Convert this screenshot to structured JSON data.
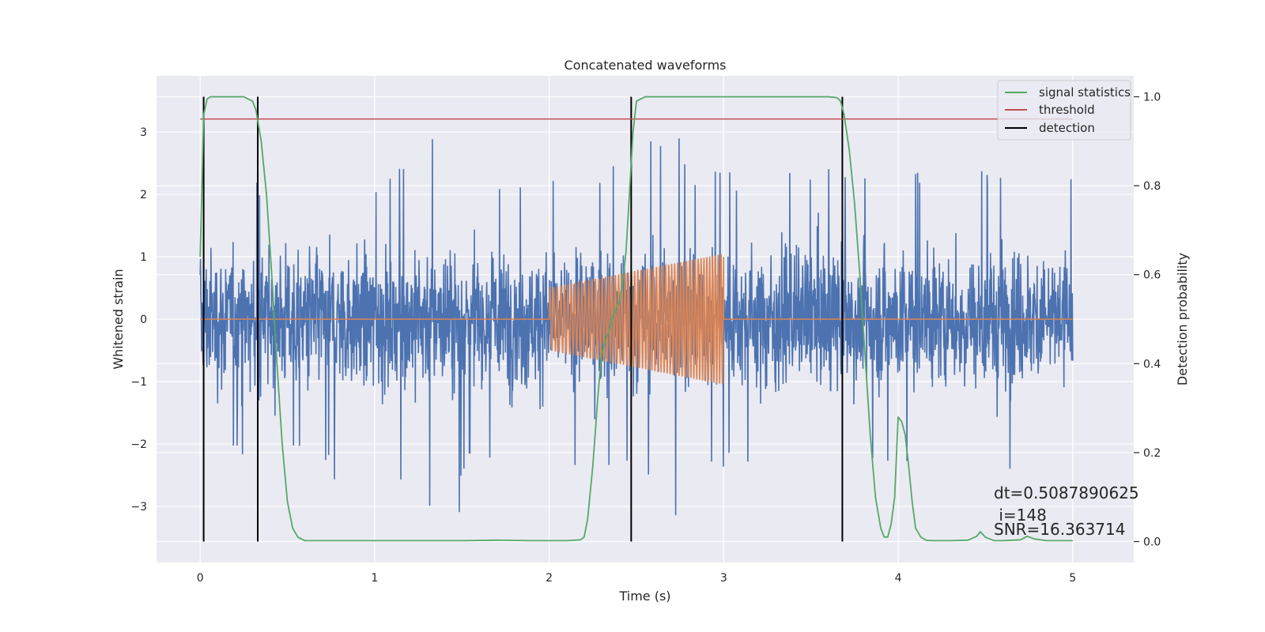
{
  "chart_data": {
    "type": "line",
    "title": "Concatenated waveforms",
    "xlabel": "Time (s)",
    "ylabel": "Whitened strain",
    "y2label": "Detection probability",
    "xlim": [
      -0.25,
      5.35
    ],
    "ylim": [
      -3.9,
      3.9
    ],
    "y2lim": [
      -0.047,
      1.047
    ],
    "xticks": [
      0,
      1,
      2,
      3,
      4,
      5
    ],
    "xtick_labels": [
      "0",
      "1",
      "2",
      "3",
      "4",
      "5"
    ],
    "yticks": [
      -3,
      -2,
      -1,
      0,
      1,
      2,
      3
    ],
    "ytick_labels": [
      "−3",
      "−2",
      "−1",
      "0",
      "1",
      "2",
      "3"
    ],
    "y2ticks": [
      0.0,
      0.2,
      0.4,
      0.6,
      0.8,
      1.0
    ],
    "y2tick_labels": [
      "0.0",
      "0.2",
      "0.4",
      "0.6",
      "0.8",
      "1.0"
    ],
    "grid": true,
    "legend_position": "top-right",
    "background": "#eaeaf2",
    "series": [
      {
        "name": "",
        "axis": "left",
        "color": "#4c72b0",
        "description": "whitened noise + injected signal",
        "x_range": [
          0,
          5
        ],
        "envelope_abs": [
          [
            0.0,
            2.2
          ],
          [
            0.25,
            2.2
          ],
          [
            0.5,
            2.2
          ],
          [
            0.75,
            2.3
          ],
          [
            0.82,
            3.3
          ],
          [
            1.0,
            2.3
          ],
          [
            1.48,
            3.55
          ],
          [
            1.5,
            2.4
          ],
          [
            2.0,
            2.3
          ],
          [
            2.5,
            2.6
          ],
          [
            2.73,
            3.5
          ],
          [
            2.8,
            2.5
          ],
          [
            3.0,
            2.4
          ],
          [
            3.5,
            2.5
          ],
          [
            3.8,
            2.6
          ],
          [
            4.0,
            2.4
          ],
          [
            4.5,
            2.4
          ],
          [
            4.8,
            3.2
          ],
          [
            5.0,
            2.3
          ]
        ]
      },
      {
        "name": "",
        "axis": "left",
        "color": "#dd8452",
        "description": "injected template",
        "segments": [
          {
            "x": [
              0,
              2.0
            ],
            "amp_start": 0,
            "amp_end": 0
          },
          {
            "x": [
              2.0,
              3.0
            ],
            "amp_start": 0.5,
            "amp_end": 1.05,
            "cycles": 48
          },
          {
            "x": [
              3.0,
              5.0
            ],
            "amp_start": 0,
            "amp_end": 0
          }
        ]
      },
      {
        "name": "signal statistics",
        "axis": "right",
        "color": "#55a868",
        "x": [
          0.0,
          0.01,
          0.02,
          0.04,
          0.06,
          0.08,
          0.1,
          0.15,
          0.2,
          0.25,
          0.3,
          0.32,
          0.35,
          0.38,
          0.41,
          0.44,
          0.47,
          0.5,
          0.53,
          0.56,
          0.6,
          1.0,
          1.5,
          1.7,
          1.9,
          2.1,
          2.18,
          2.2,
          2.22,
          2.25,
          2.28,
          2.3,
          2.32,
          2.34,
          2.36,
          2.38,
          2.4,
          2.42,
          2.44,
          2.46,
          2.48,
          2.5,
          2.55,
          2.6,
          3.0,
          3.5,
          3.6,
          3.65,
          3.67,
          3.69,
          3.72,
          3.75,
          3.78,
          3.81,
          3.84,
          3.87,
          3.9,
          3.92,
          3.94,
          3.96,
          3.98,
          4.0,
          4.02,
          4.04,
          4.06,
          4.08,
          4.1,
          4.13,
          4.16,
          4.2,
          4.3,
          4.4,
          4.45,
          4.47,
          4.5,
          4.55,
          4.6,
          4.7,
          4.74,
          4.78,
          4.85,
          5.0
        ],
        "y": [
          0.64,
          0.8,
          0.96,
          0.995,
          1.0,
          1.0,
          1.0,
          1.0,
          1.0,
          1.0,
          0.99,
          0.97,
          0.9,
          0.78,
          0.6,
          0.4,
          0.22,
          0.09,
          0.03,
          0.01,
          0.002,
          0.002,
          0.002,
          0.003,
          0.002,
          0.002,
          0.004,
          0.01,
          0.05,
          0.17,
          0.33,
          0.42,
          0.45,
          0.47,
          0.5,
          0.52,
          0.54,
          0.58,
          0.65,
          0.78,
          0.92,
          0.99,
          1.0,
          1.0,
          1.0,
          1.0,
          1.0,
          0.998,
          0.99,
          0.96,
          0.88,
          0.76,
          0.6,
          0.42,
          0.24,
          0.1,
          0.03,
          0.01,
          0.01,
          0.04,
          0.1,
          0.28,
          0.27,
          0.24,
          0.17,
          0.09,
          0.03,
          0.01,
          0.003,
          0.002,
          0.002,
          0.003,
          0.012,
          0.022,
          0.01,
          0.002,
          0.002,
          0.004,
          0.012,
          0.006,
          0.002,
          0.002
        ]
      },
      {
        "name": "threshold",
        "axis": "right",
        "color": "#c44e52",
        "x": [
          0.0,
          5.0
        ],
        "y": [
          0.95,
          0.95
        ]
      },
      {
        "name": "detection",
        "axis": "right",
        "color": "#000000",
        "vlines_x": [
          0.02,
          0.33,
          2.47,
          3.68
        ],
        "ymin": 0.0,
        "ymax": 1.0
      }
    ],
    "annotations": {
      "dt": "dt=0.5087890625",
      "i": " i=148",
      "snr": "SNR=16.363714"
    }
  }
}
